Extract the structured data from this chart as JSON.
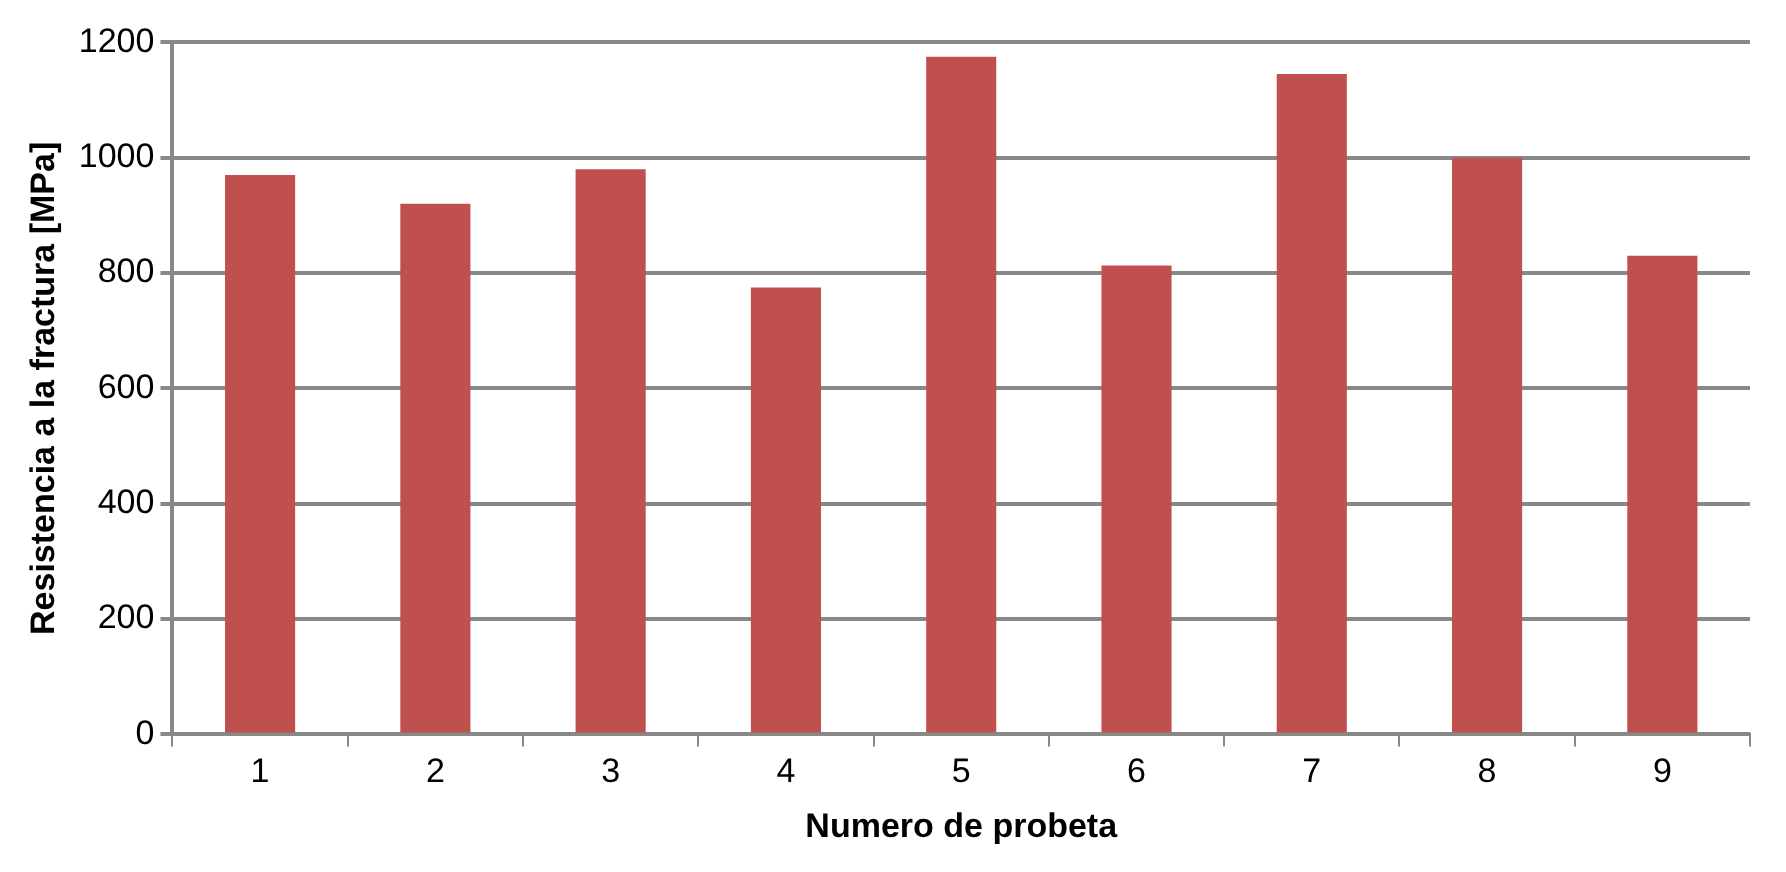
{
  "chart_data": {
    "type": "bar",
    "xlabel": "Numero de probeta",
    "ylabel": "Resistencia a la fractura [MPa]",
    "categories": [
      "1",
      "2",
      "3",
      "4",
      "5",
      "6",
      "7",
      "8",
      "9"
    ],
    "values": [
      970,
      920,
      980,
      775,
      1175,
      813,
      1145,
      1000,
      830
    ],
    "color": "#c0504d",
    "ylim": [
      0,
      1200
    ],
    "yticks": [
      0,
      200,
      400,
      600,
      800,
      1000,
      1200
    ],
    "grid": "y",
    "legend": false
  }
}
